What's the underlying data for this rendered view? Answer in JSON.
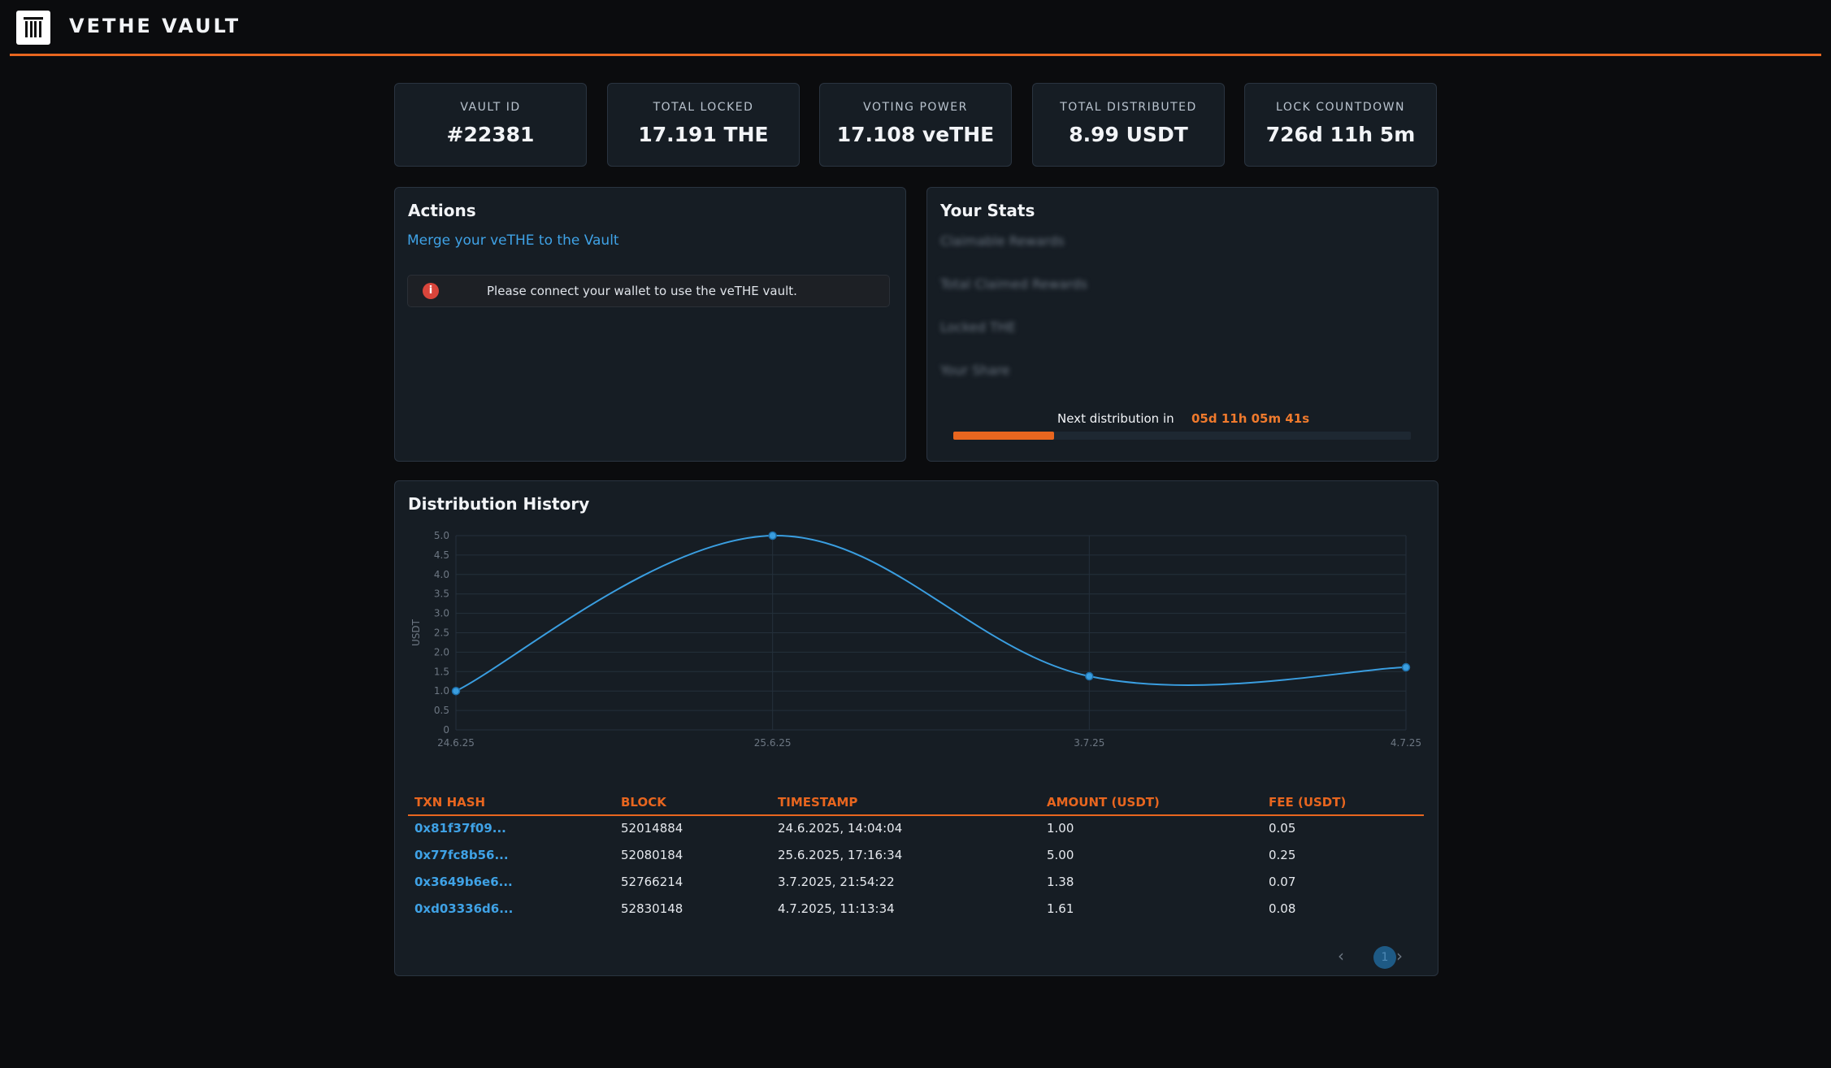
{
  "app": {
    "title": "VETHE VAULT"
  },
  "stats": [
    {
      "label": "VAULT ID",
      "value": "#22381"
    },
    {
      "label": "TOTAL LOCKED",
      "value": "17.191 THE"
    },
    {
      "label": "VOTING POWER",
      "value": "17.108 veTHE"
    },
    {
      "label": "TOTAL DISTRIBUTED",
      "value": "8.99 USDT"
    },
    {
      "label": "LOCK COUNTDOWN",
      "value": "726d 11h 5m"
    }
  ],
  "actions": {
    "title": "Actions",
    "merge_link": "Merge your veTHE to the Vault",
    "alert_icon": "i",
    "alert_text": "Please connect your wallet to use the veTHE vault."
  },
  "your_stats": {
    "title": "Your Stats",
    "rows": [
      "Claimable Rewards",
      "Total Claimed Rewards",
      "Locked THE",
      "Your Share"
    ],
    "next_label": "Next distribution in",
    "next_value": "05d 11h 05m 41s",
    "progress": 0.22
  },
  "history": {
    "title": "Distribution History",
    "columns": [
      "TXN HASH",
      "BLOCK",
      "TIMESTAMP",
      "AMOUNT (USDT)",
      "FEE (USDT)"
    ],
    "rows": [
      [
        "0x81f37f09...",
        "52014884",
        "24.6.2025, 14:04:04",
        "1.00",
        "0.05"
      ],
      [
        "0x77fc8b56...",
        "52080184",
        "25.6.2025, 17:16:34",
        "5.00",
        "0.25"
      ],
      [
        "0x3649b6e6...",
        "52766214",
        "3.7.2025, 21:54:22",
        "1.38",
        "0.07"
      ],
      [
        "0xd03336d6...",
        "52830148",
        "4.7.2025, 11:13:34",
        "1.61",
        "0.08"
      ]
    ],
    "pager": {
      "prev": "‹",
      "page": "1",
      "next": "›"
    }
  },
  "chart_data": {
    "type": "line",
    "categories": [
      "24.6.25",
      "25.6.25",
      "3.7.25",
      "4.7.25"
    ],
    "values": [
      1.0,
      5.0,
      1.38,
      1.61
    ],
    "ylabel": "USDT",
    "xlabel": "",
    "ylim": [
      0,
      5
    ],
    "yticks": [
      "0",
      "0.5",
      "1.0",
      "1.5",
      "2.0",
      "2.5",
      "3.0",
      "3.5",
      "4.0",
      "4.5",
      "5.0"
    ],
    "grid": true,
    "colors": {
      "line": "#3a9ee0",
      "grid": "#24303b",
      "axis_text": "#6d7783"
    }
  },
  "colors": {
    "accent": "#e8661f",
    "link": "#3fa2e6",
    "panel": "#161d24",
    "bg": "#0b0c0e"
  }
}
